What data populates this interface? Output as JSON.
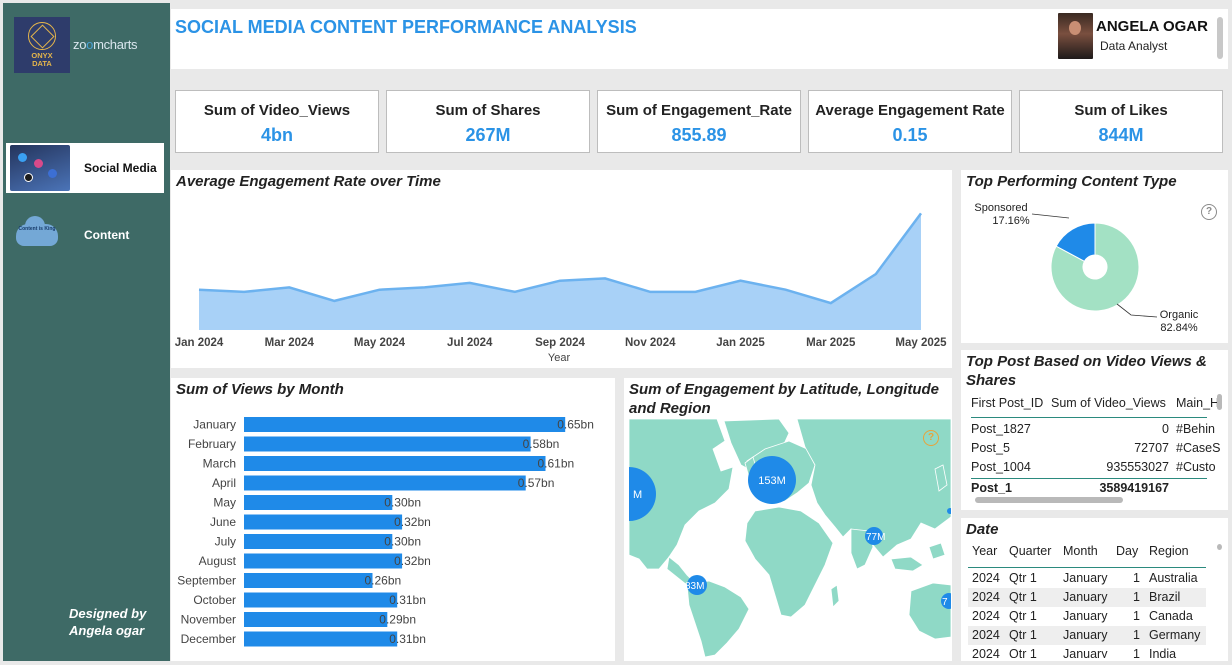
{
  "brand": {
    "logo_line1": "ONYX",
    "logo_line2": "DATA",
    "partner_zoom": "zo",
    "partner_o": "o",
    "partner_rest": "mcharts"
  },
  "nav": [
    {
      "label": "Social Media",
      "active": true
    },
    {
      "label": "Content",
      "active": false,
      "thumb_text": "Content is King"
    }
  ],
  "footer": {
    "line1": "Designed by",
    "line2": "Angela ogar"
  },
  "header": {
    "title": "SOCIAL MEDIA CONTENT PERFORMANCE ANALYSIS",
    "user_name": "ANGELA OGAR",
    "user_role": "Data Analyst"
  },
  "kpis": [
    {
      "label": "Sum of Video_Views",
      "value": "4bn"
    },
    {
      "label": "Sum of Shares",
      "value": "267M"
    },
    {
      "label": "Sum of Engagement_Rate",
      "value": "855.89"
    },
    {
      "label": "Average Engagement Rate",
      "value": "0.15"
    },
    {
      "label": "Sum of Likes",
      "value": "844M"
    }
  ],
  "colors": {
    "accent": "#2b93e6",
    "bar": "#1f8ae8",
    "area": "#a8d1f7",
    "line": "#6cb2ef",
    "pie_major": "#a3e1c4",
    "pie_minor": "#1f8ae8",
    "map_land": "#8fd9c6",
    "sidebar": "#3e6a66"
  },
  "chart_data": [
    {
      "type": "area",
      "title": "Average Engagement Rate over Time",
      "xlabel": "Year",
      "ylabel": "",
      "x_ticks": [
        "Jan 2024",
        "Mar 2024",
        "May 2024",
        "Jul 2024",
        "Sep 2024",
        "Nov 2024",
        "Jan 2025",
        "Mar 2025",
        "May 2025"
      ],
      "x": [
        "Jan 2024",
        "Feb 2024",
        "Mar 2024",
        "Apr 2024",
        "May 2024",
        "Jun 2024",
        "Jul 2024",
        "Aug 2024",
        "Sep 2024",
        "Oct 2024",
        "Nov 2024",
        "Dec 2024",
        "Jan 2025",
        "Feb 2025",
        "Mar 2025",
        "Apr 2025",
        "May 2025"
      ],
      "values": [
        0.15,
        0.149,
        0.151,
        0.145,
        0.15,
        0.151,
        0.153,
        0.149,
        0.154,
        0.155,
        0.149,
        0.149,
        0.154,
        0.15,
        0.144,
        0.157,
        0.184
      ],
      "ylim": [
        0.132,
        0.19
      ]
    },
    {
      "type": "bar",
      "orientation": "horizontal",
      "title": "Sum of Views by Month",
      "categories": [
        "January",
        "February",
        "March",
        "April",
        "May",
        "June",
        "July",
        "August",
        "September",
        "October",
        "November",
        "December"
      ],
      "values": [
        0.65,
        0.58,
        0.61,
        0.57,
        0.3,
        0.32,
        0.3,
        0.32,
        0.26,
        0.31,
        0.29,
        0.31
      ],
      "value_labels": [
        "0.65bn",
        "0.58bn",
        "0.61bn",
        "0.57bn",
        "0.30bn",
        "0.32bn",
        "0.30bn",
        "0.32bn",
        "0.26bn",
        "0.31bn",
        "0.29bn",
        "0.31bn"
      ],
      "xlim": [
        0,
        0.69
      ]
    },
    {
      "type": "pie",
      "donut": true,
      "title": "Top Performing Content Type",
      "labels": [
        "Organic",
        "Sponsored"
      ],
      "values": [
        82.84,
        17.16
      ],
      "value_labels": [
        "82.84%",
        "17.16%"
      ]
    }
  ],
  "map": {
    "title": "Sum of Engagement by Latitude, Longitude and Region",
    "bubbles": [
      {
        "label": "153M",
        "region": "Europe"
      },
      {
        "label": "M",
        "region": "North America (clipped)"
      },
      {
        "label": "77M",
        "region": "India"
      },
      {
        "label": "83M",
        "region": "Brazil"
      },
      {
        "label": "7",
        "region": "Australia (clipped)"
      }
    ]
  },
  "top_posts": {
    "title": "Top Post Based on Video Views & Shares",
    "columns": [
      "First Post_ID",
      "Sum of Video_Views",
      "Main_H"
    ],
    "rows": [
      [
        "Post_1827",
        "0",
        "#Behin"
      ],
      [
        "Post_5",
        "72707",
        "#CaseS"
      ],
      [
        "Post_1004",
        "935553027",
        "#Custo"
      ]
    ],
    "total": [
      "Post_1",
      "3589419167",
      ""
    ]
  },
  "date_table": {
    "title": "Date",
    "columns": [
      "Year",
      "Quarter",
      "Month",
      "Day",
      "Region"
    ],
    "rows": [
      [
        "2024",
        "Qtr 1",
        "January",
        "1",
        "Australia"
      ],
      [
        "2024",
        "Qtr 1",
        "January",
        "1",
        "Brazil"
      ],
      [
        "2024",
        "Qtr 1",
        "January",
        "1",
        "Canada"
      ],
      [
        "2024",
        "Qtr 1",
        "January",
        "1",
        "Germany"
      ],
      [
        "2024",
        "Qtr 1",
        "January",
        "1",
        "India"
      ]
    ]
  }
}
